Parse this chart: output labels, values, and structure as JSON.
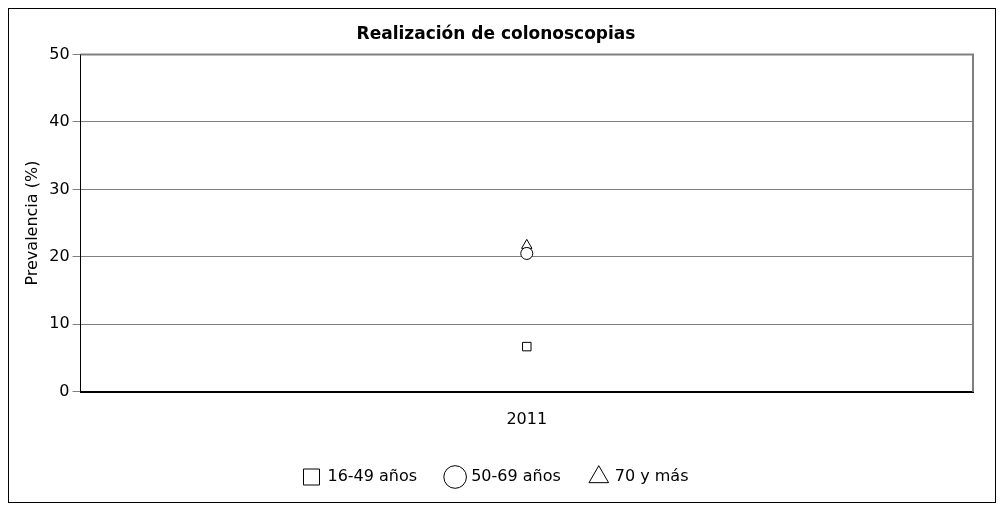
{
  "chart_data": {
    "type": "line",
    "title": "Realización de colonoscopias",
    "ylabel": "Prevalencia (%)",
    "categories": [
      "2011"
    ],
    "series": [
      {
        "name": "16-49 años",
        "color": "#000000",
        "marker": "square",
        "values": [
          6.7
        ]
      },
      {
        "name": "50-69 años",
        "color": "#000000",
        "marker": "circle",
        "values": [
          20.5
        ]
      },
      {
        "name": "70 y más",
        "color": "#000000",
        "marker": "triangle",
        "values": [
          21.7
        ]
      }
    ],
    "ylim": [
      0,
      50
    ],
    "yticks": [
      0,
      10,
      20,
      30,
      40,
      50
    ],
    "grid": "y",
    "legend": "bottom"
  }
}
